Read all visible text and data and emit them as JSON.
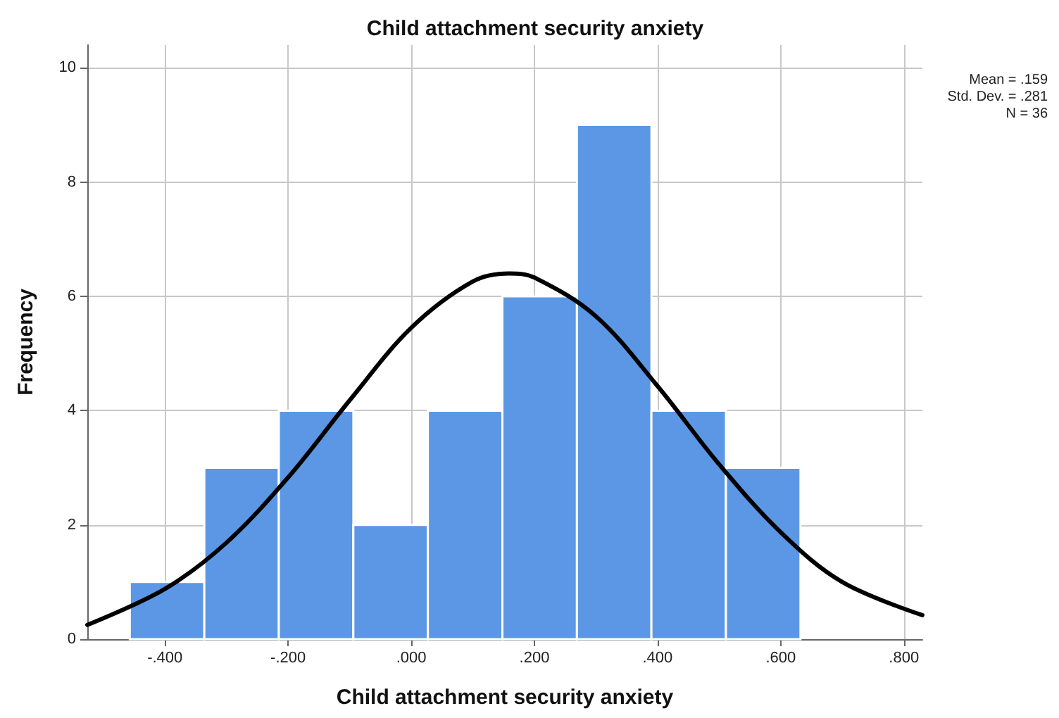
{
  "chart_data": {
    "type": "histogram",
    "title": "Child attachment security anxiety",
    "xlabel": "Child attachment security anxiety",
    "ylabel": "Frequency",
    "annotations": [
      "Mean = .159",
      "Std. Dev. = .281",
      "N = 36"
    ],
    "series": [
      {
        "color": "#5b97e5",
        "bins": [
          -0.457,
          -0.336,
          -0.215,
          -0.094,
          0.027,
          0.148,
          0.269,
          0.39,
          0.511,
          0.632
        ],
        "values": [
          1,
          3,
          4,
          2,
          4,
          6,
          9,
          4,
          3
        ]
      },
      {
        "type": "line",
        "color": "#000000",
        "x": [
          -0.526,
          -0.4,
          -0.3,
          -0.2,
          -0.1,
          0,
          0.1,
          0.159,
          0.2,
          0.3,
          0.4,
          0.5,
          0.6,
          0.7,
          0.83
        ],
        "values": [
          0.25,
          0.88,
          1.69,
          2.83,
          4.18,
          5.45,
          6.26,
          6.4,
          6.33,
          5.65,
          4.43,
          3.06,
          1.87,
          1.0,
          0.42
        ]
      }
    ],
    "xlim": [
      -0.526,
      0.83
    ],
    "xticks": [
      {
        "value": -0.4,
        "label": "-.400"
      },
      {
        "value": -0.2,
        "label": "-.200"
      },
      {
        "value": 0,
        "label": ".000"
      },
      {
        "value": 0.2,
        "label": ".200"
      },
      {
        "value": 0.4,
        "label": ".400"
      },
      {
        "value": 0.6,
        "label": ".600"
      },
      {
        "value": 0.8,
        "label": ".800"
      }
    ],
    "ylim": [
      0,
      10.4
    ],
    "yticks": [
      0,
      2,
      4,
      6,
      8,
      10
    ],
    "grid": true
  }
}
